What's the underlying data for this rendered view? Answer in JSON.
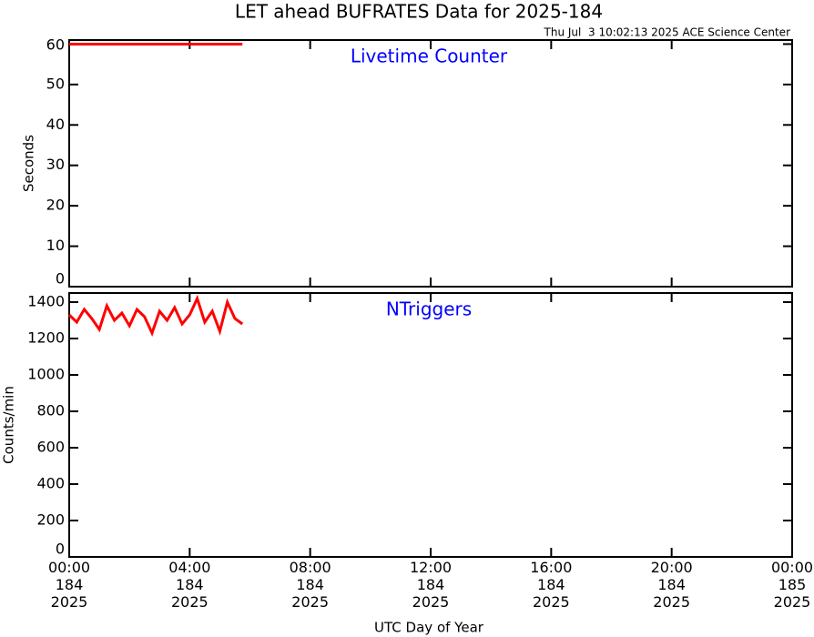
{
  "chart_data": [
    {
      "type": "line",
      "title": "LET ahead BUFRATES Data for 2025-184",
      "subtitle": "Thu Jul  3 10:02:13 2025 ACE Science Center",
      "annotation": "Livetime Counter",
      "ylabel": "Seconds",
      "ylim": [
        0,
        61
      ],
      "yticks": [
        0,
        10,
        20,
        30,
        40,
        50,
        60
      ],
      "xlim": [
        0,
        24
      ],
      "series": [
        {
          "color": "#ff0000",
          "x": [
            0,
            5.75
          ],
          "values": [
            60,
            60
          ]
        }
      ]
    },
    {
      "type": "line",
      "annotation": "NTriggers",
      "ylabel": "Counts/min",
      "xlabel": "UTC Day of Year",
      "ylim": [
        0,
        1450
      ],
      "yticks": [
        0,
        200,
        400,
        600,
        800,
        1000,
        1200,
        1400
      ],
      "xlim": [
        0,
        24
      ],
      "xticks": [
        {
          "value": 0,
          "label": "00:00\n184\n2025"
        },
        {
          "value": 4,
          "label": "04:00\n184\n2025"
        },
        {
          "value": 8,
          "label": "08:00\n184\n2025"
        },
        {
          "value": 12,
          "label": "12:00\n184\n2025"
        },
        {
          "value": 16,
          "label": "16:00\n184\n2025"
        },
        {
          "value": 20,
          "label": "20:00\n184\n2025"
        },
        {
          "value": 24,
          "label": "00:00\n185\n2025"
        }
      ],
      "series": [
        {
          "color": "#ff0000",
          "x": [
            0,
            0.25,
            0.5,
            0.75,
            1,
            1.25,
            1.5,
            1.75,
            2,
            2.25,
            2.5,
            2.75,
            3,
            3.25,
            3.5,
            3.75,
            4,
            4.25,
            4.5,
            4.75,
            5,
            5.25,
            5.5,
            5.75
          ],
          "values": [
            1330,
            1290,
            1360,
            1310,
            1250,
            1380,
            1300,
            1340,
            1270,
            1360,
            1320,
            1230,
            1350,
            1300,
            1370,
            1280,
            1330,
            1420,
            1290,
            1350,
            1240,
            1400,
            1310,
            1280
          ]
        }
      ]
    }
  ]
}
